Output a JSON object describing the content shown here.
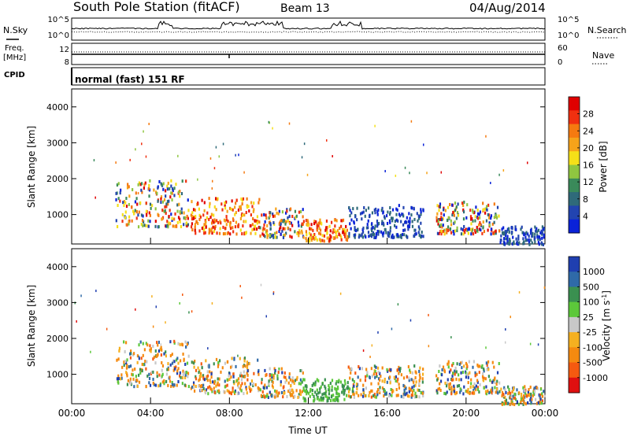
{
  "header": {
    "title": "South Pole Station (fitACF)",
    "beam": "Beam 13",
    "date": "04/Aug/2014"
  },
  "status_panels": {
    "nsky_label": "N.Sky",
    "nsearch_label": "N.Search",
    "nsky_ticks": [
      "10^5",
      "10^0"
    ],
    "nsearch_ticks": [
      "10^5",
      "10^0"
    ],
    "freq_label": "Freq.",
    "freq_unit": "[MHz]",
    "freq_ticks": [
      "12",
      "8"
    ],
    "nave_label": "Nave",
    "nave_ticks": [
      "60",
      "0"
    ],
    "cpid_label": "CPID",
    "cpid_text": "normal (fast) 151 RF"
  },
  "chart_data": [
    {
      "type": "heatmap",
      "parameter": "Power",
      "ylabel": "Slant Range [km]",
      "ylim": [
        180,
        4500
      ],
      "xlim": [
        0,
        24
      ],
      "y_ticks": [
        "1000",
        "2000",
        "3000",
        "4000"
      ],
      "colorbar_label": "Power [dB]",
      "colorbar_ticks": [
        "4",
        "8",
        "12",
        "16",
        "20",
        "24",
        "28"
      ],
      "colorbar_colors": [
        "#0a22d8",
        "#2244b0",
        "#2f6a7a",
        "#3a8a5a",
        "#8fc640",
        "#f5e018",
        "#f6a31a",
        "#f57a10",
        "#f03010",
        "#e00000"
      ],
      "scatter_regions": [
        {
          "t": [
            2.2,
            5.9
          ],
          "r": [
            700,
            2000
          ],
          "level": "mixed"
        },
        {
          "t": [
            6.0,
            9.5
          ],
          "r": [
            500,
            1500
          ],
          "level": "high"
        },
        {
          "t": [
            9.5,
            11.7
          ],
          "r": [
            400,
            1200
          ],
          "level": "mixed"
        },
        {
          "t": [
            11.7,
            14.0
          ],
          "r": [
            300,
            900
          ],
          "level": "high"
        },
        {
          "t": [
            14.0,
            17.8
          ],
          "r": [
            400,
            1300
          ],
          "level": "low"
        },
        {
          "t": [
            18.4,
            21.7
          ],
          "r": [
            500,
            1400
          ],
          "level": "mixed"
        },
        {
          "t": [
            21.7,
            24.0
          ],
          "r": [
            200,
            700
          ],
          "level": "low"
        }
      ]
    },
    {
      "type": "heatmap",
      "parameter": "Velocity",
      "xlabel": "Time UT",
      "ylabel": "Slant Range [km]",
      "ylim": [
        180,
        4500
      ],
      "xlim": [
        0,
        24
      ],
      "x_ticks": [
        "00:00",
        "04:00",
        "08:00",
        "12:00",
        "16:00",
        "20:00",
        "00:00"
      ],
      "y_ticks": [
        "1000",
        "2000",
        "3000",
        "4000"
      ],
      "colorbar_label": "Velocity [m s^-1]",
      "colorbar_ticks": [
        "1000",
        "500",
        "100",
        "25",
        "-25",
        "-100",
        "-500",
        "-1000"
      ],
      "colorbar_colors": [
        "#1f3fb0",
        "#2f6aa8",
        "#3a9050",
        "#5cc83a",
        "#c8c8c8",
        "#f5b020",
        "#f58a10",
        "#f55a10",
        "#e01010"
      ],
      "scatter_regions": [
        {
          "t": [
            2.2,
            5.9
          ],
          "r": [
            700,
            2000
          ],
          "level": "mixed"
        },
        {
          "t": [
            6.0,
            9.5
          ],
          "r": [
            500,
            1500
          ],
          "level": "mixed"
        },
        {
          "t": [
            9.5,
            11.7
          ],
          "r": [
            400,
            1200
          ],
          "level": "mixed"
        },
        {
          "t": [
            11.7,
            14.0
          ],
          "r": [
            300,
            900
          ],
          "level": "green"
        },
        {
          "t": [
            14.0,
            17.8
          ],
          "r": [
            400,
            1300
          ],
          "level": "mixed"
        },
        {
          "t": [
            18.4,
            21.7
          ],
          "r": [
            500,
            1400
          ],
          "level": "mixed"
        },
        {
          "t": [
            21.7,
            24.0
          ],
          "r": [
            200,
            700
          ],
          "level": "mixed"
        }
      ]
    }
  ]
}
